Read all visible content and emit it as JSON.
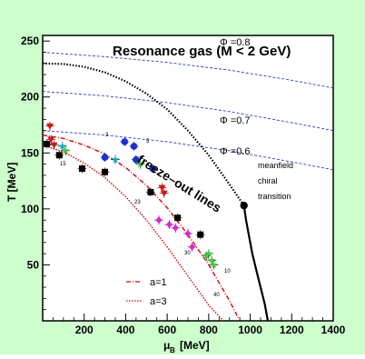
{
  "colors": {
    "outer_bg": "#ccffcc",
    "plot_bg": "#ffffff",
    "phi_line": "#2a3cc8",
    "chiral_line": "#000000",
    "freeze_a1": "#e00000",
    "freeze_a3": "#e00000"
  },
  "chart_data": {
    "type": "line",
    "title": "Resonance gas (M < 2 GeV)",
    "xlabel_main": "μ",
    "xlabel_sub": "B",
    "xlabel_unit": "[MeV]",
    "ylabel": "T [MeV]",
    "xlim": [
      0,
      1400
    ],
    "ylim": [
      0,
      255
    ],
    "x_ticks": [
      "200",
      "400",
      "600",
      "800",
      "1000",
      "1200",
      "1400"
    ],
    "y_ticks": [
      "50",
      "100",
      "150",
      "200",
      "250"
    ],
    "grid": false,
    "phi_labels": [
      "Φ =0.8",
      "Φ =0.7",
      "Φ =0.6"
    ],
    "phi_curves": [
      {
        "name": "Φ =0.8",
        "x": [
          0,
          300,
          600,
          900,
          1200,
          1400
        ],
        "y": [
          240,
          236,
          231,
          224,
          215,
          208
        ]
      },
      {
        "name": "Φ =0.7",
        "x": [
          0,
          300,
          600,
          900,
          1200,
          1400
        ],
        "y": [
          205,
          201,
          195,
          187,
          177,
          170
        ]
      },
      {
        "name": "Φ =0.6",
        "x": [
          0,
          300,
          600,
          900,
          1200,
          1400
        ],
        "y": [
          170,
          166,
          160,
          152,
          142,
          135
        ]
      }
    ],
    "chiral_boundary": {
      "dotted": {
        "x": [
          0,
          100,
          200,
          300,
          400,
          500,
          600,
          700,
          800,
          900,
          970
        ],
        "y": [
          230,
          229.5,
          227,
          222,
          214,
          203,
          189,
          170,
          148,
          122,
          103
        ]
      },
      "solid": {
        "x": [
          970,
          980,
          995,
          1010,
          1030,
          1050,
          1070,
          1085
        ],
        "y": [
          103,
          90,
          75,
          60,
          45,
          30,
          15,
          0
        ]
      },
      "critical_point": {
        "x": 970,
        "y": 103
      }
    },
    "chiral_label": [
      "meanfield",
      "chiral",
      "transition"
    ],
    "freeze_out_label": "freeze–out lines",
    "freeze_out_series": [
      {
        "name": "a=1",
        "x": [
          0,
          100,
          200,
          300,
          400,
          500,
          600,
          700,
          800,
          900,
          950
        ],
        "y": [
          166,
          163,
          157,
          149,
          137,
          121,
          101,
          77,
          50,
          18,
          0
        ]
      },
      {
        "name": "a=3",
        "x": [
          0,
          100,
          200,
          300,
          400,
          500,
          600,
          700,
          800,
          870
        ],
        "y": [
          157,
          151,
          141,
          128,
          111,
          90,
          66,
          40,
          14,
          0
        ]
      }
    ],
    "energy_labels": [
      "3",
      "5",
      "15",
      "23",
      "30",
      "40",
      "10"
    ],
    "data_points": [
      {
        "x": 20,
        "y": 158,
        "color": "#000000",
        "shape": "square"
      },
      {
        "x": 80,
        "y": 148,
        "color": "#000000",
        "shape": "square"
      },
      {
        "x": 190,
        "y": 136,
        "color": "#000000",
        "shape": "square"
      },
      {
        "x": 300,
        "y": 133,
        "color": "#000000",
        "shape": "square"
      },
      {
        "x": 520,
        "y": 115,
        "color": "#000000",
        "shape": "square"
      },
      {
        "x": 650,
        "y": 92,
        "color": "#000000",
        "shape": "square"
      },
      {
        "x": 760,
        "y": 77,
        "color": "#000000",
        "shape": "square"
      },
      {
        "x": 35,
        "y": 174,
        "color": "#dd1111",
        "shape": "triangle-down"
      },
      {
        "x": 40,
        "y": 162,
        "color": "#dd1111",
        "shape": "triangle-down"
      },
      {
        "x": 55,
        "y": 157,
        "color": "#dd1111",
        "shape": "triangle-down"
      },
      {
        "x": 575,
        "y": 119,
        "color": "#dd1111",
        "shape": "triangle-down"
      },
      {
        "x": 585,
        "y": 114,
        "color": "#dd1111",
        "shape": "triangle-down"
      },
      {
        "x": 300,
        "y": 146,
        "color": "#1a2fd6",
        "shape": "circle"
      },
      {
        "x": 395,
        "y": 160,
        "color": "#1a2fd6",
        "shape": "circle"
      },
      {
        "x": 440,
        "y": 156,
        "color": "#1a2fd6",
        "shape": "circle"
      },
      {
        "x": 450,
        "y": 144,
        "color": "#1a2fd6",
        "shape": "circle"
      },
      {
        "x": 530,
        "y": 136,
        "color": "#1a2fd6",
        "shape": "circle"
      },
      {
        "x": 95,
        "y": 156,
        "color": "#00b7c7",
        "shape": "star"
      },
      {
        "x": 110,
        "y": 152,
        "color": "#3fcf3f",
        "shape": "star"
      },
      {
        "x": 350,
        "y": 144,
        "color": "#00b7c7",
        "shape": "star"
      },
      {
        "x": 470,
        "y": 140,
        "color": "#3fcf3f",
        "shape": "star"
      },
      {
        "x": 560,
        "y": 90,
        "color": "#dd22dd",
        "shape": "diamond"
      },
      {
        "x": 610,
        "y": 86,
        "color": "#dd22dd",
        "shape": "diamond"
      },
      {
        "x": 640,
        "y": 83,
        "color": "#dd22dd",
        "shape": "diamond"
      },
      {
        "x": 700,
        "y": 78,
        "color": "#dd22dd",
        "shape": "diamond"
      },
      {
        "x": 720,
        "y": 66,
        "color": "#dd22dd",
        "shape": "diamond"
      },
      {
        "x": 790,
        "y": 58,
        "color": "#3fcf3f",
        "shape": "star"
      },
      {
        "x": 800,
        "y": 60,
        "color": "#3fcf3f",
        "shape": "star"
      },
      {
        "x": 815,
        "y": 54,
        "color": "#3fcf3f",
        "shape": "star"
      },
      {
        "x": 825,
        "y": 50,
        "color": "#3fcf3f",
        "shape": "star"
      }
    ]
  }
}
